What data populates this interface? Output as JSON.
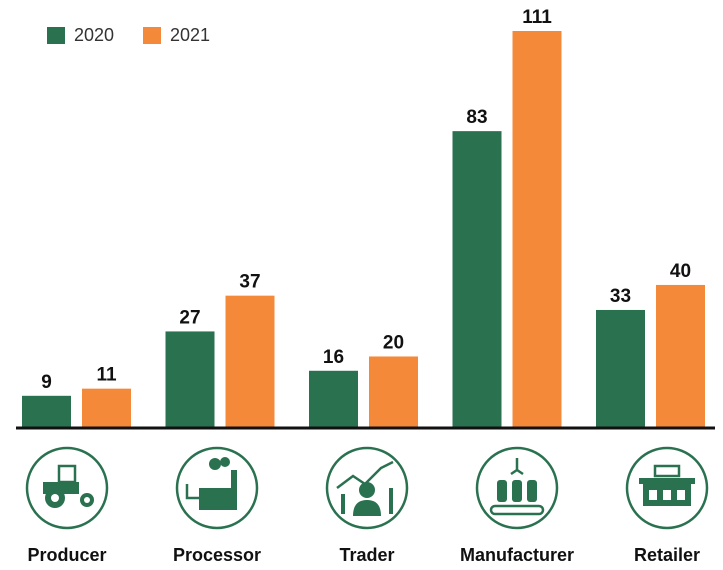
{
  "chart_data": {
    "type": "bar",
    "categories": [
      "Producer",
      "Processor",
      "Trader",
      "Manufacturer",
      "Retailer"
    ],
    "series": [
      {
        "name": "2020",
        "color": "#2a7150",
        "values": [
          9,
          27,
          16,
          83,
          33
        ]
      },
      {
        "name": "2021",
        "color": "#f4893a",
        "values": [
          11,
          37,
          20,
          111,
          40
        ]
      }
    ]
  }
}
